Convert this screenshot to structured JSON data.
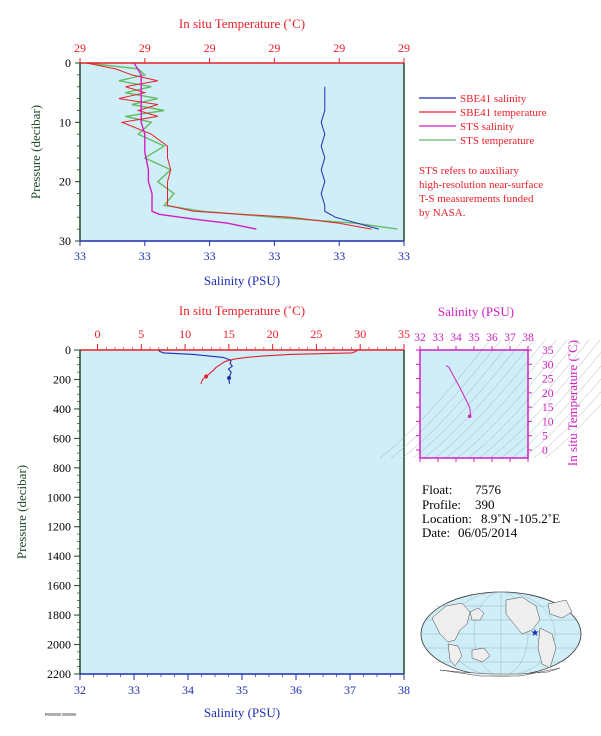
{
  "colors": {
    "panel_bg": "#cfeef8",
    "salinity_sbe": "#1f2fb0",
    "temperature_sbe": "#e8202a",
    "salinity_sts": "#d020c0",
    "temperature_sts": "#66bb66",
    "axis_green": "#1f4a2a",
    "magenta_axis": "#d020c0"
  },
  "top_panel": {
    "top_axis_title": "In situ Temperature (˚C)",
    "bottom_axis_title": "Salinity (PSU)",
    "left_axis_title": "Pressure (decibar)",
    "legend": [
      {
        "label": "SBE41 salinity",
        "color": "#1f2fb0"
      },
      {
        "label": "SBE41 temperature",
        "color": "#e8202a"
      },
      {
        "label": "STS salinity",
        "color": "#d020c0"
      },
      {
        "label": "STS temperature",
        "color": "#66bb66"
      }
    ],
    "note_lines": [
      "STS refers to auxiliary",
      "high-resolution near-surface",
      "T-S measurements funded",
      "by NASA."
    ]
  },
  "bottom_panel": {
    "top_axis_title": "In situ Temperature (˚C)",
    "bottom_axis_title": "Salinity (PSU)",
    "left_axis_title": "Pressure (decibar)"
  },
  "ts_panel": {
    "top_axis_title": "Salinity (PSU)",
    "right_axis_title": "In situ Temperature (˚C)"
  },
  "info": {
    "float_label": "Float:",
    "float_value": "7576",
    "profile_label": "Profile:",
    "profile_value": "390",
    "location_label": "Location:",
    "location_value": "8.9˚N  -105.2˚E",
    "date_label": "Date:",
    "date_value": "06/05/2014"
  },
  "footer_text": "P0000000 0000000",
  "chart_data": [
    {
      "type": "line",
      "title": "",
      "ylabel": "Pressure (decibar)",
      "xlabel": "Salinity (PSU)",
      "x2label": "In situ Temperature (˚C)",
      "ylim": [
        30,
        0
      ],
      "y_ticks": [
        0,
        10,
        20,
        30
      ],
      "x_ticks": [
        "33",
        "33",
        "33",
        "33",
        "33",
        "33"
      ],
      "x2_ticks": [
        "29",
        "29",
        "29",
        "29",
        "29",
        "29"
      ],
      "salinity_range": [
        33.0,
        33.9
      ],
      "temperature_range": [
        28.6,
        29.6
      ],
      "series": [
        {
          "name": "SBE41 salinity",
          "axis": "salinity",
          "pressure": [
            4,
            6,
            8,
            10,
            12,
            14,
            16,
            18,
            20,
            22,
            24,
            25,
            26,
            27,
            28
          ],
          "values": [
            33.68,
            33.68,
            33.68,
            33.67,
            33.68,
            33.67,
            33.68,
            33.67,
            33.68,
            33.67,
            33.68,
            33.68,
            33.71,
            33.77,
            33.83
          ]
        },
        {
          "name": "SBE41 temperature",
          "axis": "temperature",
          "pressure": [
            0,
            1,
            2,
            3,
            4,
            5,
            6,
            7,
            8,
            9,
            10,
            12,
            14,
            16,
            18,
            20,
            22,
            24,
            25,
            26,
            27,
            28
          ],
          "values": [
            28.62,
            28.71,
            28.76,
            28.84,
            28.74,
            28.8,
            28.72,
            28.84,
            28.78,
            28.84,
            28.73,
            28.82,
            28.87,
            28.87,
            28.88,
            28.87,
            28.87,
            28.87,
            28.95,
            29.25,
            29.4,
            29.5
          ]
        },
        {
          "name": "STS salinity",
          "axis": "salinity",
          "pressure": [
            0,
            1,
            2,
            3,
            5,
            8,
            10,
            12,
            15,
            18,
            20,
            22,
            24,
            25,
            25.5,
            26,
            26.5,
            27,
            27.5,
            28
          ],
          "values": [
            33.15,
            33.16,
            33.17,
            33.17,
            33.17,
            33.17,
            33.17,
            33.18,
            33.18,
            33.19,
            33.19,
            33.2,
            33.2,
            33.2,
            33.22,
            33.28,
            33.34,
            33.41,
            33.45,
            33.49
          ]
        },
        {
          "name": "STS temperature",
          "axis": "temperature",
          "pressure": [
            0,
            1,
            2,
            3,
            4,
            5,
            6,
            7,
            8,
            9,
            10,
            12,
            14,
            16,
            18,
            20,
            22,
            24,
            25,
            26,
            27,
            28
          ],
          "values": [
            28.62,
            28.78,
            28.8,
            28.72,
            28.82,
            28.74,
            28.84,
            28.76,
            28.86,
            28.74,
            28.82,
            28.78,
            28.86,
            28.8,
            28.88,
            28.84,
            28.89,
            28.86,
            28.98,
            29.2,
            29.45,
            29.58
          ]
        }
      ]
    },
    {
      "type": "line",
      "title": "",
      "ylabel": "Pressure (decibar)",
      "xlabel": "Salinity (PSU)",
      "x2label": "In situ Temperature (˚C)",
      "ylim": [
        2200,
        0
      ],
      "y_ticks": [
        0,
        200,
        400,
        600,
        800,
        1000,
        1200,
        1400,
        1600,
        1800,
        2000,
        2200
      ],
      "x_ticks": [
        32,
        33,
        34,
        35,
        36,
        37,
        38
      ],
      "x2_ticks": [
        0,
        5,
        10,
        15,
        20,
        25,
        30,
        35
      ],
      "series": [
        {
          "name": "SBE41 salinity",
          "axis": "salinity",
          "pressure": [
            0,
            10,
            20,
            30,
            50,
            70,
            90,
            110,
            130,
            150,
            170,
            190,
            210,
            230
          ],
          "values": [
            33.45,
            33.48,
            33.55,
            34.1,
            34.65,
            34.8,
            34.78,
            34.82,
            34.75,
            34.8,
            34.78,
            34.76,
            34.76,
            34.77
          ]
        },
        {
          "name": "SBE41 temperature",
          "axis": "temperature",
          "pressure": [
            0,
            5,
            10,
            20,
            30,
            40,
            50,
            60,
            70,
            80,
            100,
            120,
            140,
            160,
            180,
            200,
            230
          ],
          "values": [
            29.5,
            29.6,
            29.5,
            29.0,
            22.0,
            19.0,
            17.0,
            15.8,
            15.0,
            14.5,
            14.0,
            13.5,
            13.2,
            12.8,
            12.4,
            12.0,
            11.8
          ]
        }
      ]
    },
    {
      "type": "scatter",
      "title": "",
      "xlabel": "Salinity (PSU)",
      "ylabel": "In situ Temperature (˚C)",
      "xlim": [
        32,
        38
      ],
      "ylim": [
        0,
        35
      ],
      "x_ticks": [
        32,
        33,
        34,
        35,
        36,
        37,
        38
      ],
      "y_ticks": [
        0,
        5,
        10,
        15,
        20,
        25,
        30,
        35
      ],
      "series": [
        {
          "name": "T-S",
          "x": [
            33.45,
            33.6,
            34.2,
            34.6,
            34.75,
            34.78,
            34.8,
            34.76
          ],
          "y": [
            29.5,
            29.0,
            22.0,
            17.0,
            15.0,
            14.0,
            12.5,
            11.8
          ]
        }
      ]
    }
  ]
}
